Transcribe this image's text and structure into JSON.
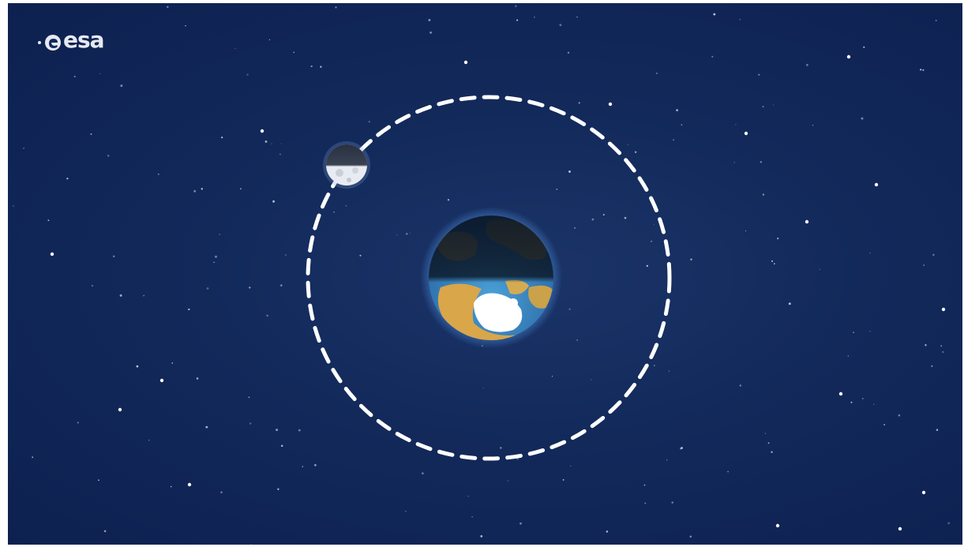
{
  "logo": {
    "text": "esa"
  },
  "scene": {
    "bodies": [
      {
        "name": "earth",
        "icon": "earth-icon"
      },
      {
        "name": "moon",
        "icon": "moon-icon"
      }
    ],
    "orbit_style": "dashed",
    "colors": {
      "background": "#12295a",
      "orbit": "#ffffff",
      "ocean": "#3f8ec9",
      "land": "#c9a24a",
      "ice": "#ffffff",
      "shadow": "#0a1526"
    }
  }
}
